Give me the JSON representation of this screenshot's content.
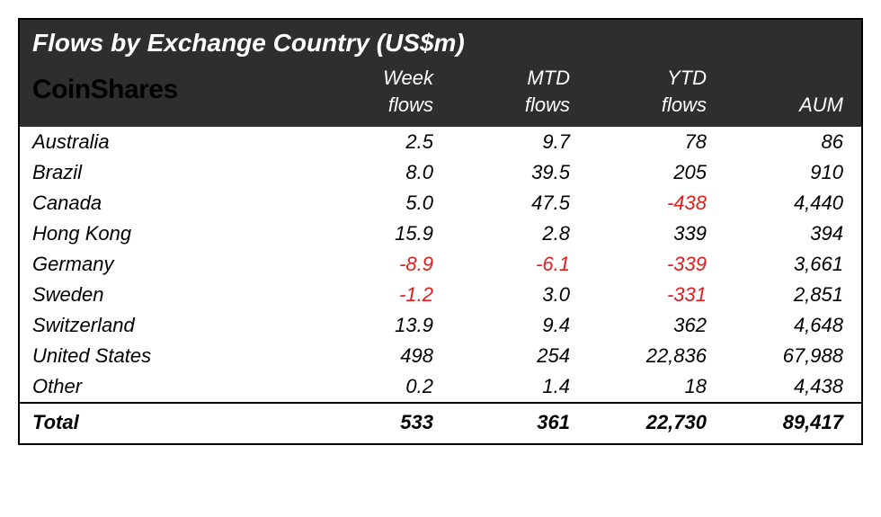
{
  "table": {
    "type": "table",
    "title": "Flows by Exchange Country (US$m)",
    "brand": "CoinShares",
    "header_bg": "#2e2e2e",
    "header_fg": "#ffffff",
    "body_bg": "#ffffff",
    "body_fg": "#000000",
    "negative_color": "#e31b1b",
    "border_color": "#000000",
    "title_fontsize": 28,
    "brand_fontsize": 30,
    "header_fontsize": 22,
    "cell_fontsize": 22,
    "font_style": "italic",
    "columns": [
      {
        "label_line1": "Week",
        "label_line2": "flows"
      },
      {
        "label_line1": "MTD",
        "label_line2": "flows"
      },
      {
        "label_line1": "YTD",
        "label_line2": "flows"
      },
      {
        "label_line1": "",
        "label_line2": "AUM"
      }
    ],
    "rows": [
      {
        "label": "Australia",
        "cells": [
          {
            "v": "2.5",
            "neg": false
          },
          {
            "v": "9.7",
            "neg": false
          },
          {
            "v": "78",
            "neg": false
          },
          {
            "v": "86",
            "neg": false
          }
        ]
      },
      {
        "label": "Brazil",
        "cells": [
          {
            "v": "8.0",
            "neg": false
          },
          {
            "v": "39.5",
            "neg": false
          },
          {
            "v": "205",
            "neg": false
          },
          {
            "v": "910",
            "neg": false
          }
        ]
      },
      {
        "label": "Canada",
        "cells": [
          {
            "v": "5.0",
            "neg": false
          },
          {
            "v": "47.5",
            "neg": false
          },
          {
            "v": "-438",
            "neg": true
          },
          {
            "v": "4,440",
            "neg": false
          }
        ]
      },
      {
        "label": "Hong Kong",
        "cells": [
          {
            "v": "15.9",
            "neg": false
          },
          {
            "v": "2.8",
            "neg": false
          },
          {
            "v": "339",
            "neg": false
          },
          {
            "v": "394",
            "neg": false
          }
        ]
      },
      {
        "label": "Germany",
        "cells": [
          {
            "v": "-8.9",
            "neg": true
          },
          {
            "v": "-6.1",
            "neg": true
          },
          {
            "v": "-339",
            "neg": true
          },
          {
            "v": "3,661",
            "neg": false
          }
        ]
      },
      {
        "label": "Sweden",
        "cells": [
          {
            "v": "-1.2",
            "neg": true
          },
          {
            "v": "3.0",
            "neg": false
          },
          {
            "v": "-331",
            "neg": true
          },
          {
            "v": "2,851",
            "neg": false
          }
        ]
      },
      {
        "label": "Switzerland",
        "cells": [
          {
            "v": "13.9",
            "neg": false
          },
          {
            "v": "9.4",
            "neg": false
          },
          {
            "v": "362",
            "neg": false
          },
          {
            "v": "4,648",
            "neg": false
          }
        ]
      },
      {
        "label": "United States",
        "cells": [
          {
            "v": "498",
            "neg": false
          },
          {
            "v": "254",
            "neg": false
          },
          {
            "v": "22,836",
            "neg": false
          },
          {
            "v": "67,988",
            "neg": false
          }
        ]
      },
      {
        "label": "Other",
        "cells": [
          {
            "v": "0.2",
            "neg": false
          },
          {
            "v": "1.4",
            "neg": false
          },
          {
            "v": "18",
            "neg": false
          },
          {
            "v": "4,438",
            "neg": false
          }
        ]
      }
    ],
    "total": {
      "label": "Total",
      "cells": [
        {
          "v": "533"
        },
        {
          "v": "361"
        },
        {
          "v": "22,730"
        },
        {
          "v": "89,417"
        }
      ]
    }
  }
}
